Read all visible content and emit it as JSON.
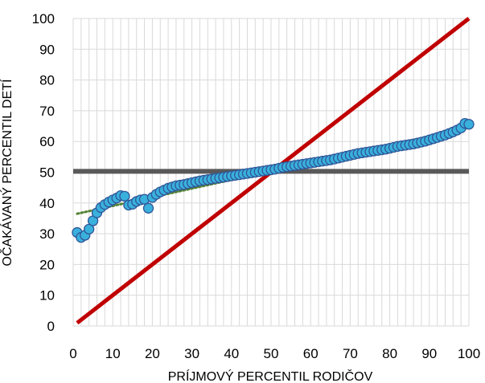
{
  "chart_data": {
    "type": "scatter",
    "xlabel": "PRÍJMOVÝ PERCENTIL RODIČOV",
    "ylabel": "OČAKÁVANÝ PERCENTIL DETÍ",
    "xlim": [
      0,
      100
    ],
    "ylim": [
      0,
      100
    ],
    "x_ticks": [
      "0",
      "10",
      "20",
      "30",
      "40",
      "50",
      "60",
      "70",
      "80",
      "90",
      "100"
    ],
    "y_ticks": [
      "0",
      "10",
      "20",
      "30",
      "40",
      "50",
      "60",
      "70",
      "80",
      "90",
      "100"
    ],
    "grid": true,
    "legend": "none",
    "colors": {
      "points": "#3ab0dc",
      "point_outline": "#2f5597",
      "equality_line": "#c00000",
      "reference_line": "#595959",
      "trend_line": "#548235"
    },
    "series": [
      {
        "kind": "scatter",
        "x": [
          1,
          2,
          3,
          4,
          5,
          6,
          7,
          8,
          9,
          10,
          11,
          12,
          13,
          14,
          15,
          16,
          17,
          18,
          19,
          20,
          21,
          22,
          23,
          24,
          25,
          26,
          27,
          28,
          29,
          30,
          31,
          32,
          33,
          34,
          35,
          36,
          37,
          38,
          39,
          40,
          41,
          42,
          43,
          44,
          45,
          46,
          47,
          48,
          49,
          50,
          51,
          52,
          53,
          54,
          55,
          56,
          57,
          58,
          59,
          60,
          61,
          62,
          63,
          64,
          65,
          66,
          67,
          68,
          69,
          70,
          71,
          72,
          73,
          74,
          75,
          76,
          77,
          78,
          79,
          80,
          81,
          82,
          83,
          84,
          85,
          86,
          87,
          88,
          89,
          90,
          91,
          92,
          93,
          94,
          95,
          96,
          97,
          98,
          99,
          100
        ],
        "y": [
          30.4,
          28.8,
          29.5,
          31.5,
          34.2,
          36.8,
          38.5,
          39.5,
          40.3,
          41.0,
          41.6,
          42.4,
          42.2,
          39.3,
          39.6,
          40.5,
          41.0,
          41.2,
          38.3,
          41.8,
          42.8,
          43.6,
          44.2,
          44.8,
          45.2,
          45.6,
          45.8,
          46.0,
          46.3,
          46.6,
          46.9,
          47.2,
          47.4,
          47.6,
          47.8,
          48.0,
          48.2,
          48.4,
          48.6,
          48.8,
          49.0,
          49.2,
          49.4,
          49.6,
          49.8,
          50.0,
          50.2,
          50.4,
          50.6,
          50.8,
          51.0,
          51.3,
          51.6,
          51.8,
          52.0,
          52.2,
          52.4,
          52.6,
          52.8,
          53.0,
          53.2,
          53.4,
          53.6,
          53.8,
          54.0,
          54.3,
          54.6,
          54.9,
          55.2,
          55.5,
          55.8,
          56.1,
          56.3,
          56.5,
          56.7,
          56.9,
          57.1,
          57.3,
          57.5,
          57.8,
          58.1,
          58.4,
          58.6,
          58.8,
          59.0,
          59.2,
          59.5,
          59.8,
          60.1,
          60.5,
          60.9,
          61.3,
          61.7,
          62.1,
          62.6,
          63.1,
          63.7,
          64.4,
          65.9,
          65.6
        ]
      },
      {
        "kind": "trend",
        "style": "dotted",
        "x": [
          1,
          100
        ],
        "y": [
          36.5,
          64.5
        ]
      },
      {
        "kind": "line",
        "x": [
          0,
          100
        ],
        "y": [
          50.3,
          50.3
        ]
      },
      {
        "kind": "line",
        "x": [
          1,
          100
        ],
        "y": [
          1,
          100
        ]
      }
    ]
  }
}
